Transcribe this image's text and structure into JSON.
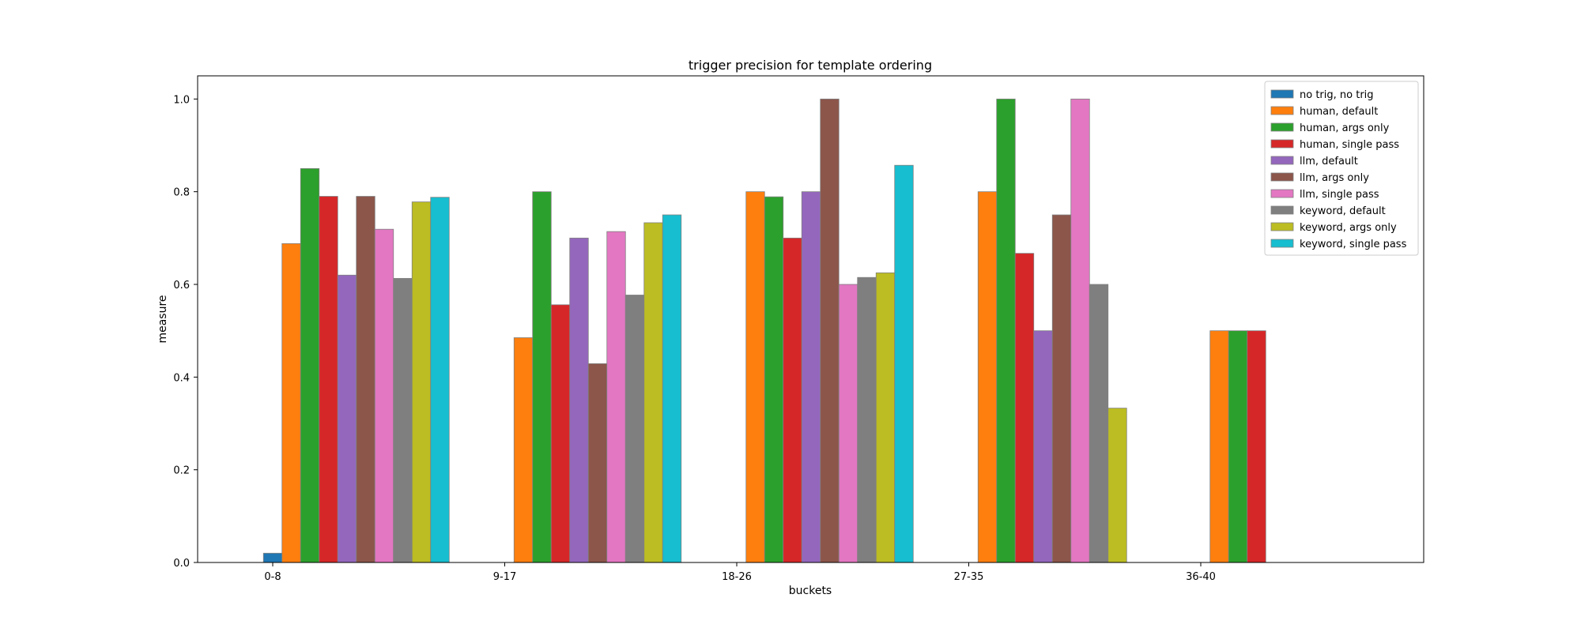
{
  "chart_data": {
    "type": "bar",
    "title": "trigger precision for template ordering",
    "xlabel": "buckets",
    "ylabel": "measure",
    "ylim": [
      0,
      1.05
    ],
    "yticks": [
      "0.0",
      "0.2",
      "0.4",
      "0.6",
      "0.8",
      "1.0"
    ],
    "categories": [
      "0-8",
      "9-17",
      "18-26",
      "27-35",
      "36-40"
    ],
    "legend_position": "top-right",
    "grid": false,
    "series": [
      {
        "name": "no trig, no trig",
        "color": "#1f77b4",
        "values": [
          0.02,
          0,
          0,
          0,
          0
        ]
      },
      {
        "name": "human, default",
        "color": "#ff7f0e",
        "values": [
          0.688,
          0.485,
          0.8,
          0.8,
          0.5
        ]
      },
      {
        "name": "human, args only",
        "color": "#2ca02c",
        "values": [
          0.85,
          0.8,
          0.789,
          1.0,
          0.5
        ]
      },
      {
        "name": "human, single pass",
        "color": "#d62728",
        "values": [
          0.79,
          0.556,
          0.7,
          0.667,
          0.5
        ]
      },
      {
        "name": "llm, default",
        "color": "#9467bd",
        "values": [
          0.62,
          0.7,
          0.8,
          0.5,
          0
        ]
      },
      {
        "name": "llm, args only",
        "color": "#8c564b",
        "values": [
          0.79,
          0.429,
          1.0,
          0.75,
          0
        ]
      },
      {
        "name": "llm, single pass",
        "color": "#e377c2",
        "values": [
          0.719,
          0.714,
          0.6,
          1.0,
          0
        ]
      },
      {
        "name": "keyword, default",
        "color": "#7f7f7f",
        "values": [
          0.613,
          0.577,
          0.615,
          0.6,
          0
        ]
      },
      {
        "name": "keyword, args only",
        "color": "#bcbd22",
        "values": [
          0.778,
          0.733,
          0.625,
          0.333,
          0
        ]
      },
      {
        "name": "keyword, single pass",
        "color": "#17becf",
        "values": [
          0.788,
          0.75,
          0.857,
          0,
          0
        ]
      }
    ]
  }
}
